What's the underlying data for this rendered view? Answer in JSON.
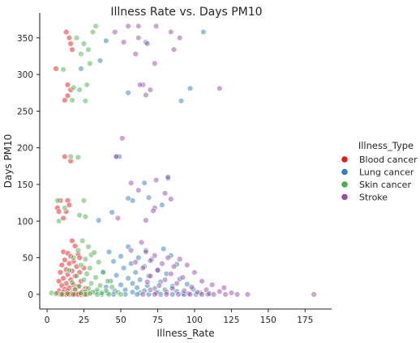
{
  "chart_data": {
    "type": "scatter",
    "title": "Illness Rate vs. Days PM10",
    "xlabel": "Illness_Rate",
    "ylabel": "Days PM10",
    "xlim": [
      -5,
      193
    ],
    "ylim": [
      -20,
      384
    ],
    "xticks": [
      0,
      25,
      50,
      75,
      100,
      125,
      150,
      175
    ],
    "yticks": [
      0,
      50,
      100,
      150,
      200,
      250,
      300,
      350
    ],
    "grid": false,
    "legend": {
      "title": "Illness_Type",
      "placement": "right"
    },
    "series": [
      {
        "name": "Blood cancer",
        "color": "#e41a1c",
        "points": [
          [
            13,
            358
          ],
          [
            15,
            350
          ],
          [
            16,
            342
          ],
          [
            17,
            334
          ],
          [
            6,
            308
          ],
          [
            14,
            286
          ],
          [
            16,
            279
          ],
          [
            14,
            271
          ],
          [
            12,
            265
          ],
          [
            12,
            188
          ],
          [
            16,
            182
          ],
          [
            9,
            128
          ],
          [
            14,
            128
          ],
          [
            15,
            122
          ],
          [
            7,
            118
          ],
          [
            8,
            113
          ],
          [
            13,
            113
          ],
          [
            11,
            104
          ],
          [
            17,
            73
          ],
          [
            19,
            66
          ],
          [
            11,
            58
          ],
          [
            14,
            56
          ],
          [
            21,
            55
          ],
          [
            16,
            52
          ],
          [
            22,
            50
          ],
          [
            12,
            47
          ],
          [
            18,
            45
          ],
          [
            10,
            40
          ],
          [
            15,
            42
          ],
          [
            20,
            38
          ],
          [
            25,
            36
          ],
          [
            13,
            34
          ],
          [
            17,
            32
          ],
          [
            9,
            30
          ],
          [
            22,
            30
          ],
          [
            14,
            27
          ],
          [
            19,
            25
          ],
          [
            11,
            22
          ],
          [
            16,
            20
          ],
          [
            8,
            18
          ],
          [
            23,
            18
          ],
          [
            13,
            15
          ],
          [
            18,
            13
          ],
          [
            10,
            12
          ],
          [
            21,
            11
          ],
          [
            15,
            9
          ],
          [
            26,
            8
          ],
          [
            12,
            7
          ],
          [
            19,
            6
          ],
          [
            8,
            5
          ],
          [
            14,
            5
          ],
          [
            24,
            4
          ],
          [
            17,
            3
          ],
          [
            11,
            3
          ],
          [
            29,
            3
          ],
          [
            7,
            2
          ],
          [
            13,
            2
          ],
          [
            20,
            2
          ],
          [
            16,
            1
          ],
          [
            22,
            1
          ],
          [
            9,
            0
          ],
          [
            11,
            0
          ],
          [
            13,
            0
          ],
          [
            15,
            0
          ],
          [
            17,
            0
          ],
          [
            19,
            0
          ],
          [
            21,
            0
          ],
          [
            23,
            0
          ],
          [
            25,
            0
          ],
          [
            27,
            0
          ]
        ]
      },
      {
        "name": "Lung cancer",
        "color": "#377eb8",
        "points": [
          [
            40,
            346
          ],
          [
            67,
            344
          ],
          [
            106,
            358
          ],
          [
            55,
            275
          ],
          [
            91,
            264
          ],
          [
            97,
            281
          ],
          [
            36,
            319
          ],
          [
            23,
            308
          ],
          [
            47,
            188
          ],
          [
            49,
            188
          ],
          [
            66,
            152
          ],
          [
            82,
            158
          ],
          [
            35,
            101
          ],
          [
            44,
            112
          ],
          [
            58,
            128
          ],
          [
            69,
            132
          ],
          [
            78,
            122
          ],
          [
            55,
            131
          ],
          [
            79,
            62
          ],
          [
            55,
            65
          ],
          [
            67,
            60
          ],
          [
            42,
            58
          ],
          [
            84,
            53
          ],
          [
            50,
            52
          ],
          [
            62,
            50
          ],
          [
            71,
            48
          ],
          [
            45,
            45
          ],
          [
            57,
            42
          ],
          [
            88,
            41
          ],
          [
            66,
            38
          ],
          [
            52,
            36
          ],
          [
            75,
            33
          ],
          [
            38,
            31
          ],
          [
            60,
            30
          ],
          [
            81,
            28
          ],
          [
            47,
            26
          ],
          [
            69,
            25
          ],
          [
            55,
            22
          ],
          [
            90,
            21
          ],
          [
            63,
            20
          ],
          [
            43,
            18
          ],
          [
            77,
            17
          ],
          [
            58,
            15
          ],
          [
            95,
            14
          ],
          [
            50,
            13
          ],
          [
            68,
            12
          ],
          [
            85,
            11
          ],
          [
            40,
            10
          ],
          [
            61,
            9
          ],
          [
            73,
            8
          ],
          [
            99,
            7
          ],
          [
            53,
            6
          ],
          [
            80,
            6
          ],
          [
            46,
            5
          ],
          [
            66,
            5
          ],
          [
            88,
            4
          ],
          [
            33,
            3
          ],
          [
            58,
            3
          ],
          [
            75,
            3
          ],
          [
            104,
            2
          ],
          [
            41,
            2
          ],
          [
            63,
            2
          ],
          [
            92,
            1
          ],
          [
            37,
            0
          ],
          [
            45,
            0
          ],
          [
            53,
            0
          ],
          [
            61,
            0
          ],
          [
            69,
            0
          ],
          [
            77,
            0
          ],
          [
            85,
            0
          ],
          [
            93,
            0
          ],
          [
            101,
            0
          ],
          [
            109,
            0
          ]
        ]
      },
      {
        "name": "Skin cancer",
        "color": "#4daf4a",
        "points": [
          [
            33,
            366
          ],
          [
            31,
            358
          ],
          [
            25,
            342
          ],
          [
            20,
            350
          ],
          [
            28,
            334
          ],
          [
            23,
            328
          ],
          [
            29,
            315
          ],
          [
            11,
            307
          ],
          [
            27,
            286
          ],
          [
            18,
            282
          ],
          [
            22,
            279
          ],
          [
            17,
            265
          ],
          [
            26,
            264
          ],
          [
            16,
            188
          ],
          [
            21,
            187
          ],
          [
            7,
            128
          ],
          [
            25,
            128
          ],
          [
            12,
            118
          ],
          [
            26,
            106
          ],
          [
            22,
            108
          ],
          [
            8,
            100
          ],
          [
            30,
            54
          ],
          [
            24,
            73
          ],
          [
            28,
            65
          ],
          [
            21,
            60
          ],
          [
            32,
            57
          ],
          [
            18,
            50
          ],
          [
            26,
            48
          ],
          [
            35,
            44
          ],
          [
            23,
            40
          ],
          [
            29,
            36
          ],
          [
            15,
            33
          ],
          [
            38,
            30
          ],
          [
            27,
            28
          ],
          [
            20,
            25
          ],
          [
            33,
            23
          ],
          [
            25,
            20
          ],
          [
            41,
            18
          ],
          [
            17,
            16
          ],
          [
            30,
            15
          ],
          [
            36,
            12
          ],
          [
            22,
            11
          ],
          [
            44,
            10
          ],
          [
            28,
            8
          ],
          [
            19,
            7
          ],
          [
            34,
            6
          ],
          [
            40,
            5
          ],
          [
            26,
            4
          ],
          [
            31,
            3
          ],
          [
            48,
            3
          ],
          [
            23,
            2
          ],
          [
            37,
            2
          ],
          [
            14,
            1
          ],
          [
            29,
            1
          ],
          [
            3,
            2
          ],
          [
            6,
            1
          ],
          [
            10,
            0
          ],
          [
            18,
            0
          ],
          [
            26,
            0
          ],
          [
            34,
            0
          ],
          [
            42,
            0
          ],
          [
            50,
            0
          ]
        ]
      },
      {
        "name": "Stroke",
        "color": "#984ea3",
        "points": [
          [
            55,
            366
          ],
          [
            62,
            366
          ],
          [
            74,
            366
          ],
          [
            46,
            358
          ],
          [
            62,
            350
          ],
          [
            84,
            358
          ],
          [
            90,
            350
          ],
          [
            68,
            342
          ],
          [
            52,
            344
          ],
          [
            86,
            334
          ],
          [
            60,
            328
          ],
          [
            73,
            315
          ],
          [
            65,
            286
          ],
          [
            63,
            286
          ],
          [
            70,
            279
          ],
          [
            117,
            281
          ],
          [
            67,
            272
          ],
          [
            51,
            213
          ],
          [
            47,
            188
          ],
          [
            57,
            152
          ],
          [
            74,
            156
          ],
          [
            82,
            160
          ],
          [
            62,
            142
          ],
          [
            80,
            138
          ],
          [
            84,
            130
          ],
          [
            73,
            118
          ],
          [
            72,
            114
          ],
          [
            48,
            104
          ],
          [
            67,
            101
          ],
          [
            64,
            71
          ],
          [
            57,
            60
          ],
          [
            67,
            58
          ],
          [
            73,
            53
          ],
          [
            82,
            50
          ],
          [
            90,
            48
          ],
          [
            70,
            46
          ],
          [
            60,
            44
          ],
          [
            78,
            42
          ],
          [
            95,
            40
          ],
          [
            86,
            38
          ],
          [
            65,
            36
          ],
          [
            75,
            33
          ],
          [
            100,
            30
          ],
          [
            84,
            28
          ],
          [
            70,
            25
          ],
          [
            92,
            23
          ],
          [
            80,
            20
          ],
          [
            105,
            18
          ],
          [
            68,
            17
          ],
          [
            88,
            15
          ],
          [
            112,
            13
          ],
          [
            76,
            12
          ],
          [
            98,
            10
          ],
          [
            120,
            9
          ],
          [
            85,
            8
          ],
          [
            70,
            6
          ],
          [
            108,
            6
          ],
          [
            93,
            5
          ],
          [
            117,
            4
          ],
          [
            81,
            3
          ],
          [
            102,
            3
          ],
          [
            125,
            2
          ],
          [
            74,
            2
          ],
          [
            96,
            1
          ],
          [
            110,
            1
          ],
          [
            136,
            0
          ],
          [
            181,
            0
          ],
          [
            65,
            0
          ],
          [
            73,
            0
          ],
          [
            81,
            0
          ],
          [
            89,
            0
          ],
          [
            97,
            0
          ],
          [
            105,
            0
          ],
          [
            113,
            0
          ],
          [
            121,
            0
          ],
          [
            129,
            0
          ]
        ]
      }
    ]
  }
}
